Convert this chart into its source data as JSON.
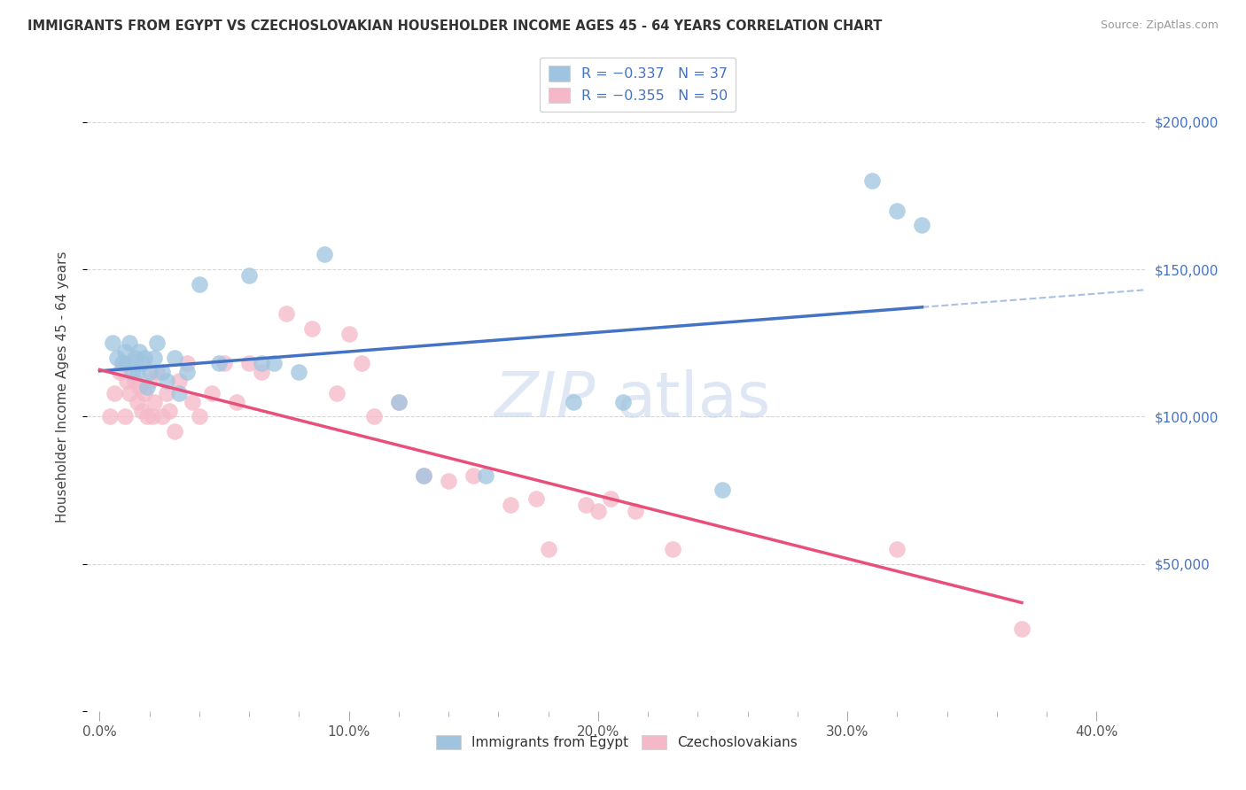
{
  "title": "IMMIGRANTS FROM EGYPT VS CZECHOSLOVAKIAN HOUSEHOLDER INCOME AGES 45 - 64 YEARS CORRELATION CHART",
  "source": "Source: ZipAtlas.com",
  "ylabel": "Householder Income Ages 45 - 64 years",
  "xlabel_ticks": [
    "0.0%",
    "",
    "",
    "",
    "",
    "10.0%",
    "",
    "",
    "",
    "",
    "20.0%",
    "",
    "",
    "",
    "",
    "30.0%",
    "",
    "",
    "",
    "",
    "40.0%"
  ],
  "xlabel_tick_vals": [
    0.0,
    0.02,
    0.04,
    0.06,
    0.08,
    0.1,
    0.12,
    0.14,
    0.16,
    0.18,
    0.2,
    0.22,
    0.24,
    0.26,
    0.28,
    0.3,
    0.32,
    0.34,
    0.36,
    0.38,
    0.4
  ],
  "ylabel_ticks": [
    0,
    50000,
    100000,
    150000,
    200000
  ],
  "ylabel_tick_labels": [
    "",
    "$50,000",
    "$100,000",
    "$150,000",
    "$200,000"
  ],
  "xlim": [
    -0.005,
    0.42
  ],
  "ylim": [
    0,
    220000
  ],
  "egypt_x": [
    0.005,
    0.007,
    0.009,
    0.01,
    0.011,
    0.012,
    0.013,
    0.014,
    0.015,
    0.016,
    0.017,
    0.018,
    0.019,
    0.02,
    0.022,
    0.023,
    0.025,
    0.027,
    0.03,
    0.032,
    0.035,
    0.04,
    0.048,
    0.06,
    0.065,
    0.07,
    0.08,
    0.09,
    0.12,
    0.13,
    0.155,
    0.19,
    0.21,
    0.25,
    0.31,
    0.32,
    0.33
  ],
  "egypt_y": [
    125000,
    120000,
    118000,
    122000,
    118000,
    125000,
    115000,
    120000,
    115000,
    122000,
    118000,
    120000,
    110000,
    115000,
    120000,
    125000,
    115000,
    112000,
    120000,
    108000,
    115000,
    145000,
    118000,
    148000,
    118000,
    118000,
    115000,
    155000,
    105000,
    80000,
    80000,
    105000,
    105000,
    75000,
    180000,
    170000,
    165000
  ],
  "czech_x": [
    0.004,
    0.006,
    0.008,
    0.01,
    0.011,
    0.012,
    0.013,
    0.014,
    0.015,
    0.016,
    0.017,
    0.018,
    0.019,
    0.02,
    0.021,
    0.022,
    0.023,
    0.025,
    0.027,
    0.028,
    0.03,
    0.032,
    0.035,
    0.037,
    0.04,
    0.045,
    0.05,
    0.055,
    0.06,
    0.065,
    0.075,
    0.085,
    0.095,
    0.1,
    0.105,
    0.11,
    0.12,
    0.13,
    0.14,
    0.15,
    0.165,
    0.175,
    0.18,
    0.195,
    0.2,
    0.205,
    0.215,
    0.23,
    0.32,
    0.37
  ],
  "czech_y": [
    100000,
    108000,
    115000,
    100000,
    112000,
    108000,
    118000,
    112000,
    105000,
    110000,
    102000,
    108000,
    100000,
    112000,
    100000,
    105000,
    115000,
    100000,
    108000,
    102000,
    95000,
    112000,
    118000,
    105000,
    100000,
    108000,
    118000,
    105000,
    118000,
    115000,
    135000,
    130000,
    108000,
    128000,
    118000,
    100000,
    105000,
    80000,
    78000,
    80000,
    70000,
    72000,
    55000,
    70000,
    68000,
    72000,
    68000,
    55000,
    55000,
    28000
  ],
  "egypt_color": "#9ec4e0",
  "czech_color": "#f5b8c8",
  "egypt_line_color": "#4472c4",
  "czech_line_color": "#e8507a",
  "bg_color": "#ffffff",
  "grid_color": "#d8d8d8",
  "watermark_color": "#c8d8ec",
  "watermark_alpha": 0.6
}
